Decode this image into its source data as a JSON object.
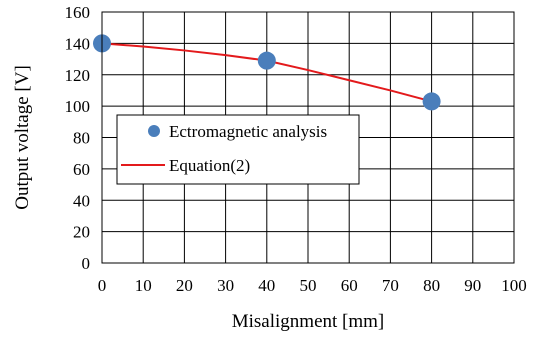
{
  "chart_data": {
    "type": "scatter",
    "xlabel": "Misalignment [mm]",
    "ylabel": "Output voltage [V]",
    "xlim": [
      0,
      100
    ],
    "ylim": [
      0,
      160
    ],
    "xticks": [
      0,
      10,
      20,
      30,
      40,
      50,
      60,
      70,
      80,
      90,
      100
    ],
    "yticks": [
      0,
      20,
      40,
      60,
      80,
      100,
      120,
      140,
      160
    ],
    "grid": true,
    "legend_position": "center-left",
    "series": [
      {
        "name": "Ectromagnetic analysis",
        "kind": "scatter",
        "color": "#4a7ebb",
        "x": [
          0,
          40,
          80
        ],
        "y": [
          140,
          129,
          103
        ]
      },
      {
        "name": "Equation(2)",
        "kind": "line",
        "color": "#e31a1c",
        "x": [
          0,
          10,
          20,
          30,
          40,
          50,
          60,
          70,
          80
        ],
        "y": [
          140,
          138,
          135.5,
          132.5,
          129,
          123,
          116.5,
          110,
          103
        ]
      }
    ]
  }
}
